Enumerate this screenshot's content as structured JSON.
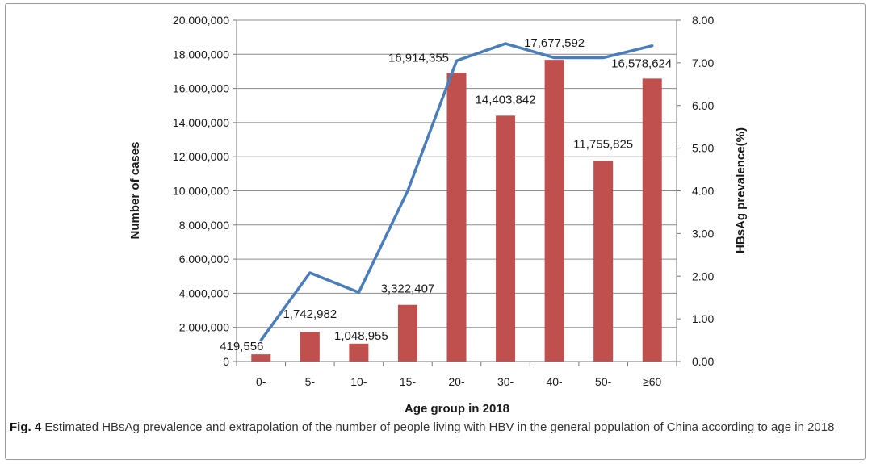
{
  "chart_data": {
    "type": "bar+line",
    "categories": [
      "0-",
      "5-",
      "10-",
      "15-",
      "20-",
      "30-",
      "40-",
      "50-",
      "≥60"
    ],
    "series": [
      {
        "name": "Number of cases",
        "type": "bar",
        "axis": "left",
        "values": [
          419556,
          1742982,
          1048955,
          3322407,
          16914355,
          14403842,
          17677592,
          11755825,
          16578624
        ],
        "labels": [
          "419,556",
          "1,742,982",
          "1,048,955",
          "3,322,407",
          "16,914,355",
          "14,403,842",
          "17,677,592",
          "11,755,825",
          "16,578,624"
        ],
        "color": "#c0504d"
      },
      {
        "name": "HBsAg prevalence(%)",
        "type": "line",
        "axis": "right",
        "values": [
          0.5,
          2.08,
          1.62,
          4.0,
          7.05,
          7.45,
          7.12,
          7.12,
          7.4
        ],
        "color": "#4a7ebb"
      }
    ],
    "xlabel": "Age group in 2018",
    "ylabel": "Number of cases",
    "y2label": "HBsAg prevalence(%)",
    "ylim": [
      0,
      20000000
    ],
    "y2lim": [
      0,
      8
    ],
    "yticks": [
      "0",
      "2,000,000",
      "4,000,000",
      "6,000,000",
      "8,000,000",
      "10,000,000",
      "12,000,000",
      "14,000,000",
      "16,000,000",
      "18,000,000",
      "20,000,000"
    ],
    "y2ticks": [
      "0.00",
      "1.00",
      "2.00",
      "3.00",
      "4.00",
      "5.00",
      "6.00",
      "7.00",
      "8.00"
    ],
    "grid": true,
    "legend": "none"
  },
  "caption": {
    "label": "Fig. 4",
    "text": " Estimated HBsAg prevalence and extrapolation of the number of people living with HBV in the general population of China according to age in 2018"
  }
}
